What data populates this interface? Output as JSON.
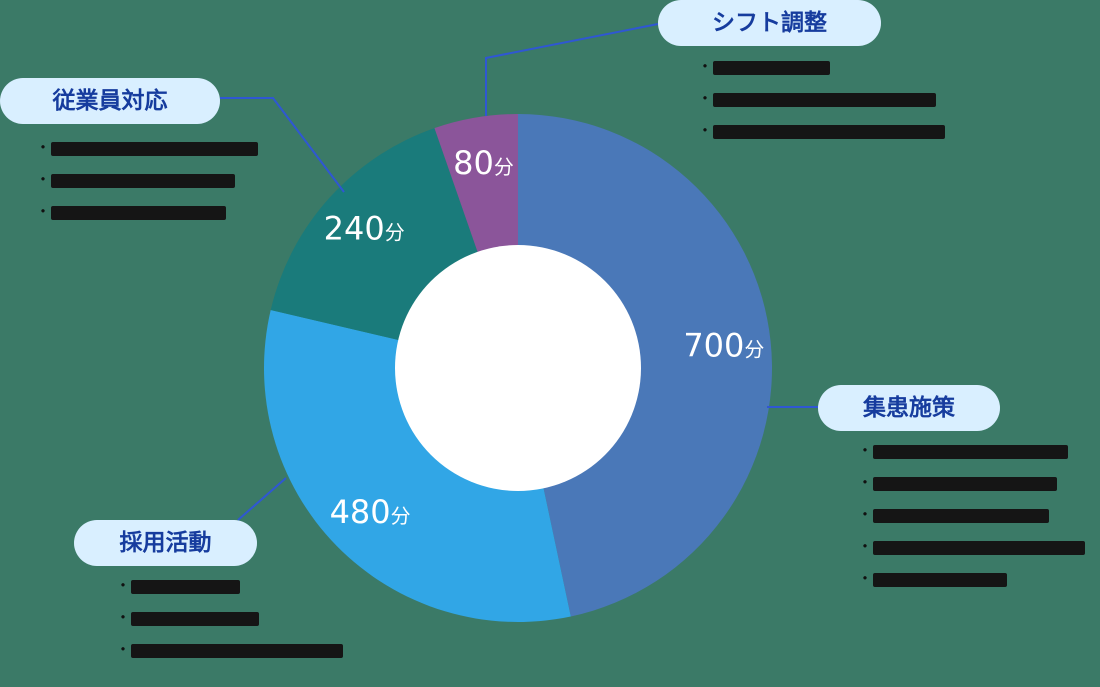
{
  "chart_data": {
    "type": "pie",
    "donut": true,
    "unit": "分",
    "slices": [
      {
        "label": "集患施策",
        "value": 700,
        "value_text": "700",
        "color": "#4a78b8"
      },
      {
        "label": "採用活動",
        "value": 480,
        "value_text": "480",
        "color": "#31a6e6"
      },
      {
        "label": "従業員対応",
        "value": 240,
        "value_text": "240",
        "color": "#1a7b7b"
      },
      {
        "label": "シフト調整",
        "value": 80,
        "value_text": "80",
        "color": "#8b559a"
      }
    ],
    "legend": "callouts"
  },
  "callouts": {
    "shift": "シフト調整",
    "staff": "従業員対応",
    "acquire": "集患施策",
    "hire": "採用活動"
  },
  "colors": {
    "background": "#3b7a67",
    "callout_fill": "#d9efff",
    "callout_text": "#163c9e",
    "leader_line": "#2f57d3",
    "hole": "#ffffff"
  }
}
